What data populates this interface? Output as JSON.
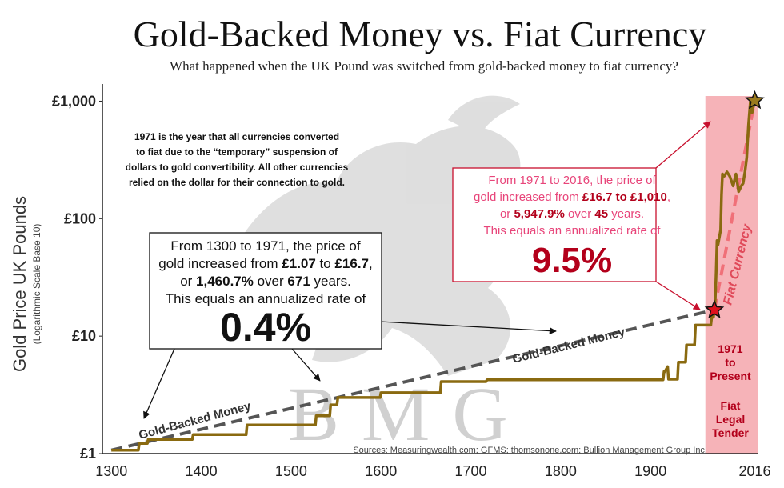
{
  "header": {
    "title": "Gold-Backed Money vs. Fiat Currency",
    "subtitle": "What happened when the UK Pound was switched from gold-backed money to fiat currency?"
  },
  "chart_data": {
    "type": "line",
    "ylabel": "Gold Price UK Pounds",
    "ylabel_sub": "(Logarithmic Scale Base 10)",
    "y_scale": "log10",
    "ylim": [
      1,
      1400
    ],
    "xlim": [
      1290,
      2020
    ],
    "y_ticks": [
      {
        "value": 1,
        "label": "£1"
      },
      {
        "value": 10,
        "label": "£10"
      },
      {
        "value": 100,
        "label": "£100"
      },
      {
        "value": 1000,
        "label": "£1,000"
      }
    ],
    "x_ticks": [
      {
        "value": 1300,
        "label": "1300"
      },
      {
        "value": 1400,
        "label": "1400"
      },
      {
        "value": 1500,
        "label": "1500"
      },
      {
        "value": 1600,
        "label": "1600"
      },
      {
        "value": 1700,
        "label": "1700"
      },
      {
        "value": 1800,
        "label": "1800"
      },
      {
        "value": 1900,
        "label": "1900"
      },
      {
        "value": 2016,
        "label": "2016"
      }
    ],
    "grid": false,
    "colors": {
      "price_line": "#8a6a10",
      "trend_line": "#555555",
      "fiat_band": "#f6b3b8",
      "fiat_trend": "#f07078",
      "arrow_red": "#c8102e"
    },
    "series": [
      {
        "key": "price",
        "x": [
          1300,
          1330,
          1331,
          1340,
          1341,
          1390,
          1391,
          1450,
          1451,
          1500,
          1501,
          1527,
          1528,
          1543,
          1544,
          1551,
          1552,
          1599,
          1600,
          1666,
          1667,
          1717,
          1718,
          1798,
          1799,
          1913,
          1914,
          1915,
          1916,
          1919,
          1920,
          1930,
          1931,
          1939,
          1940,
          1949,
          1950,
          1967,
          1968,
          1970,
          1971,
          1972,
          1973,
          1974,
          1975,
          1978,
          1979,
          1980,
          1982,
          1985,
          1988,
          1992,
          1995,
          1998,
          2001,
          2003,
          2005,
          2007,
          2008,
          2009,
          2011,
          2012,
          2013,
          2016
        ],
        "values": [
          1.07,
          1.07,
          1.22,
          1.22,
          1.32,
          1.32,
          1.45,
          1.45,
          1.75,
          1.75,
          1.75,
          1.75,
          2.1,
          2.1,
          2.6,
          2.6,
          3.0,
          3.0,
          3.3,
          3.3,
          4.1,
          4.1,
          4.25,
          4.25,
          4.25,
          4.25,
          4.25,
          5.0,
          5.0,
          5.5,
          4.3,
          4.3,
          6.0,
          6.0,
          8.4,
          8.4,
          12.4,
          12.4,
          14.5,
          14.5,
          16.7,
          21,
          35,
          65,
          60,
          80,
          160,
          240,
          230,
          250,
          230,
          190,
          240,
          170,
          190,
          200,
          250,
          330,
          460,
          620,
          980,
          1050,
          800,
          1010
        ]
      },
      {
        "key": "gold_backed_trend",
        "name": "Gold-Backed Money",
        "x": [
          1300,
          1971
        ],
        "values": [
          1.07,
          16.7
        ]
      },
      {
        "key": "fiat_trend",
        "name": "Fiat Currency",
        "x": [
          1971,
          2016
        ],
        "values": [
          16.7,
          1010
        ]
      }
    ],
    "markers": [
      {
        "x": 1971,
        "y": 16.7,
        "color": "#e0101e",
        "shape": "star"
      },
      {
        "x": 2016,
        "y": 1010,
        "color": "#9a7a1e",
        "shape": "star"
      }
    ],
    "annotations": {
      "note_1971": [
        "1971 is the year that all currencies converted",
        "to fiat due to the “temporary” suspension of",
        "dollars to gold convertibility.  All other currencies",
        "relied on the dollar for their connection to gold."
      ],
      "box_gold": {
        "line1": "From 1300 to 1971, the price of",
        "line2_pre": "gold increased from ",
        "line2_a": "£1.07",
        "line2_mid": " to ",
        "line2_b": "£16.7",
        "line2_post": ",",
        "line3_pre": "or ",
        "line3_a": "1,460.7%",
        "line3_mid": " over ",
        "line3_b": "671",
        "line3_post": " years.",
        "line4": "This equals an annualized rate of",
        "rate": "0.4%"
      },
      "box_fiat": {
        "line1": "From 1971 to 2016, the price of",
        "line2_pre": "gold increased from ",
        "line2_a": "£16.7 to £1,010",
        "line2_post": ",",
        "line3_pre": "or ",
        "line3_a": "5,947.9%",
        "line3_mid": " over ",
        "line3_b": "45",
        "line3_post": " years.",
        "line4": "This equals an annualized rate of",
        "rate": "9.5%"
      },
      "band_label": [
        "1971",
        "to",
        "Present"
      ],
      "band_label_2": [
        "Fiat",
        "Legal",
        "Tender"
      ],
      "fiat_currency_label": "Fiat Currency",
      "gold_backed_label": "Gold-Backed Money",
      "watermark": "BMG",
      "sources": "Sources: Measuringwealth.com; GFMS; thomsonone.com; Bullion Management Group Inc."
    }
  }
}
